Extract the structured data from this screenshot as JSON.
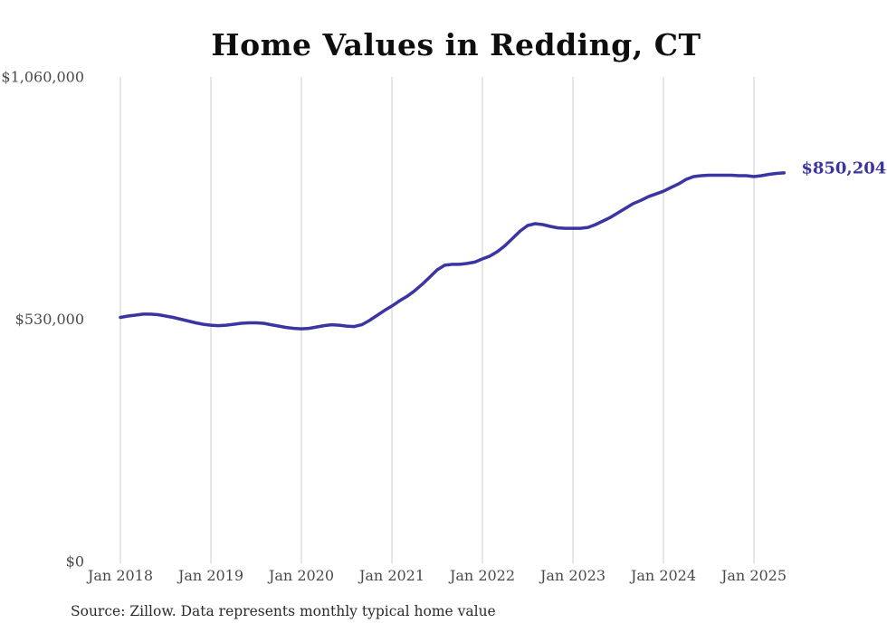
{
  "title": "Home Values in Redding, CT",
  "source_note": "Source: Zillow. Data represents monthly typical home value",
  "colors": {
    "line": "#3b34a3",
    "end_label": "#3b34a3",
    "grid": "#cccccc",
    "axis_label": "#4a4a4a",
    "title": "#0e0e0e",
    "source": "#2b2b2b",
    "background": "#ffffff"
  },
  "chart_data": {
    "type": "line",
    "title": "Home Values in Redding, CT",
    "xlabel": "",
    "ylabel": "",
    "ylim": [
      0,
      1060000
    ],
    "grid": "vertical-only",
    "legend": "none",
    "y_ticks": [
      {
        "label": "$0",
        "value": 0
      },
      {
        "label": "$530,000",
        "value": 530000
      },
      {
        "label": "$1,060,000",
        "value": 1060000
      }
    ],
    "x_ticks": [
      {
        "label": "Jan 2018",
        "month_index": 0
      },
      {
        "label": "Jan 2019",
        "month_index": 12
      },
      {
        "label": "Jan 2020",
        "month_index": 24
      },
      {
        "label": "Jan 2021",
        "month_index": 36
      },
      {
        "label": "Jan 2022",
        "month_index": 48
      },
      {
        "label": "Jan 2023",
        "month_index": 60
      },
      {
        "label": "Jan 2024",
        "month_index": 72
      },
      {
        "label": "Jan 2025",
        "month_index": 84
      }
    ],
    "series": [
      {
        "name": "Monthly typical home value",
        "start_month": "2018-01",
        "interval": "monthly",
        "values": [
          534000,
          537000,
          539000,
          541000,
          541000,
          540000,
          537000,
          534000,
          530000,
          526000,
          522000,
          519000,
          517000,
          516000,
          517000,
          519000,
          521000,
          522000,
          522000,
          521000,
          518000,
          515000,
          512000,
          510000,
          509000,
          510000,
          513000,
          516000,
          518000,
          517000,
          515000,
          514000,
          518000,
          527000,
          538000,
          549000,
          559000,
          570000,
          580000,
          592000,
          606000,
          622000,
          638000,
          648000,
          650000,
          650000,
          652000,
          655000,
          662000,
          668000,
          678000,
          691000,
          707000,
          723000,
          735000,
          739000,
          737000,
          733000,
          730000,
          729000,
          729000,
          729000,
          731000,
          737000,
          745000,
          753000,
          763000,
          773000,
          783000,
          790000,
          798000,
          804000,
          810000,
          818000,
          826000,
          836000,
          842000,
          844000,
          845000,
          845000,
          845000,
          845000,
          844000,
          844000,
          842000,
          844000,
          847000,
          849000,
          850204
        ]
      }
    ],
    "last_point_label": "$850,204",
    "last_point_value": 850204
  }
}
